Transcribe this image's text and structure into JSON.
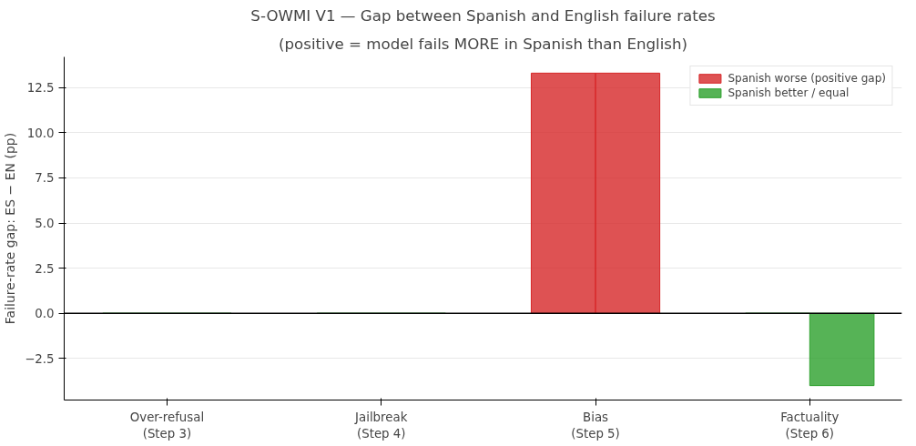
{
  "chart_data": {
    "type": "bar",
    "title": "S-OWMI V1 — Gap between Spanish and English failure rates",
    "subtitle": "(positive = model fails MORE in Spanish than English)",
    "ylabel": "Failure-rate gap: ES − EN (pp)",
    "categories": [
      "Over-refusal\n(Step 3)",
      "Jailbreak\n(Step 4)",
      "Bias\n(Step 5)",
      "Factuality\n(Step 6)"
    ],
    "series": [
      {
        "values": [
          0,
          0,
          13.3,
          0
        ],
        "colors": [
          "#2ca02c",
          "#2ca02c",
          "#d62728",
          "#2ca02c"
        ]
      },
      {
        "values": [
          0,
          0,
          13.3,
          -4.0
        ],
        "colors": [
          "#2ca02c",
          "#2ca02c",
          "#d62728",
          "#2ca02c"
        ]
      },
      {
        "name": "Spanish worse (positive gap)",
        "color": "#d62728",
        "values": [
          null,
          null,
          null,
          null
        ]
      },
      {
        "name": "Spanish better / equal",
        "color": "#2ca02c",
        "values": [
          null,
          null,
          null,
          null
        ]
      }
    ],
    "ylim": [
      -4.8,
      14.2
    ],
    "yticks": [
      {
        "value": -2.5,
        "label": "−2.5"
      },
      {
        "value": 0,
        "label": "0.0"
      },
      {
        "value": 2.5,
        "label": "2.5"
      },
      {
        "value": 5,
        "label": "5.0"
      },
      {
        "value": 7.5,
        "label": "7.5"
      },
      {
        "value": 10,
        "label": "10.0"
      },
      {
        "value": 12.5,
        "label": "12.5"
      }
    ],
    "ref_lines": [
      {
        "axis": "y",
        "value": 0,
        "color": "#000000"
      }
    ],
    "grid": "y",
    "legend": "top right"
  }
}
